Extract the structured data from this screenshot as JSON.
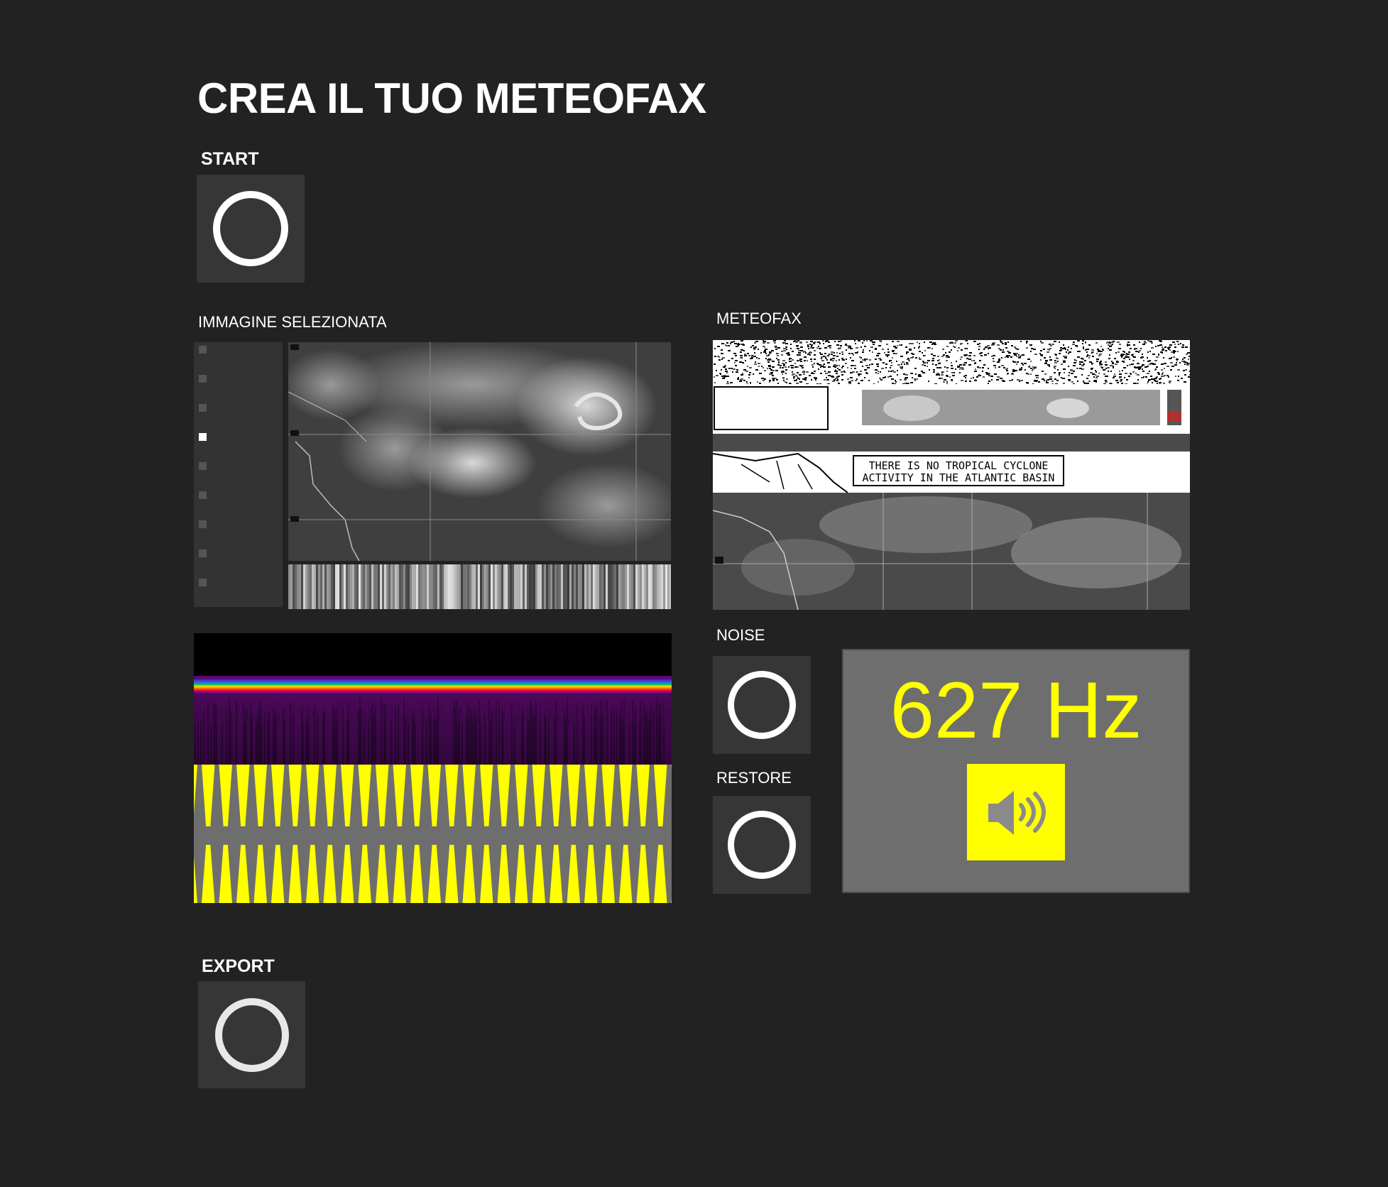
{
  "header": {
    "title": "CREA IL TUO METEOFAX"
  },
  "start": {
    "label": "START"
  },
  "selected_image": {
    "label": "IMMAGINE SELEZIONATA",
    "radio_count": 9,
    "selected_index": 3
  },
  "meteofax": {
    "label": "METEOFAX",
    "fax_text_line1": "THERE IS NO TROPICAL CYCLONE",
    "fax_text_line2": "ACTIVITY IN THE ATLANTIC BASIN"
  },
  "noise": {
    "label": "NOISE"
  },
  "restore": {
    "label": "RESTORE"
  },
  "frequency": {
    "value": "627 Hz"
  },
  "export": {
    "label": "EXPORT"
  },
  "colors": {
    "background": "#222222",
    "accent": "#ffff00",
    "panel": "#6e6e6e",
    "button": "#363636"
  },
  "icons": {
    "start_button": "ring-icon",
    "noise_button": "ring-icon",
    "restore_button": "ring-icon",
    "export_button": "ring-icon",
    "audio_button": "speaker-icon"
  }
}
